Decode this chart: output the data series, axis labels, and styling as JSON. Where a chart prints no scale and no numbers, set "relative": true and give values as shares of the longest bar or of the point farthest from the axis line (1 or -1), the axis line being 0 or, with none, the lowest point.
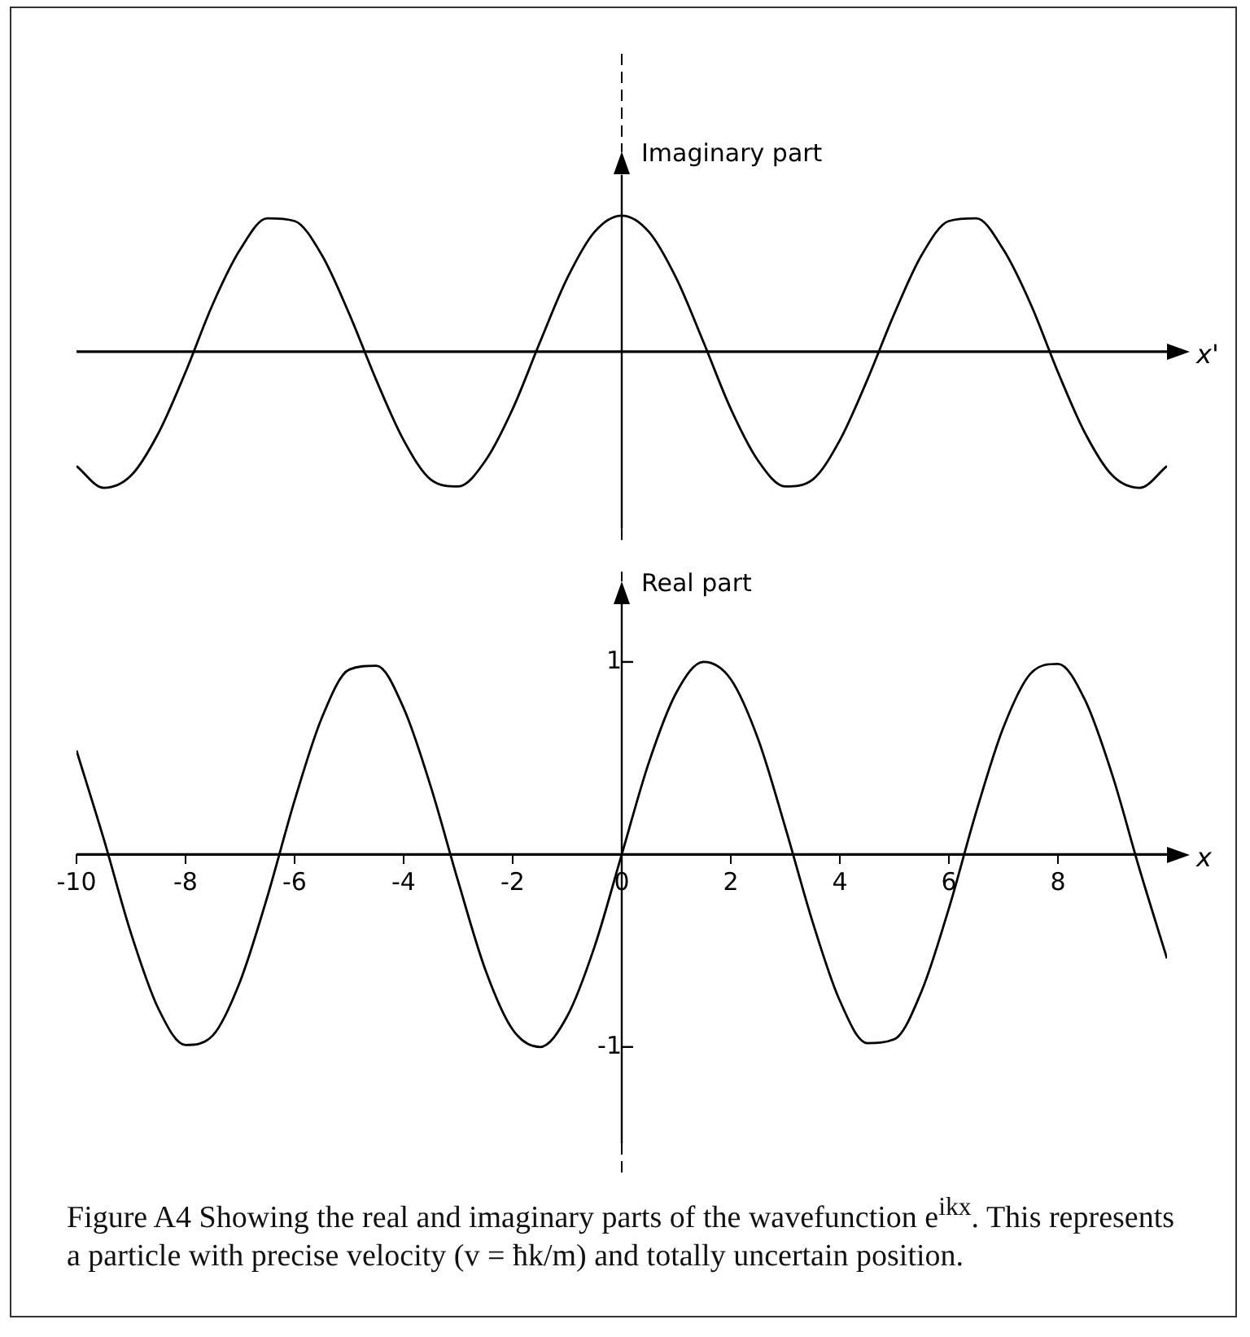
{
  "chart_data": [
    {
      "type": "line",
      "relative": true,
      "ylabel": "Imaginary part",
      "xlabel": "x'",
      "tick_labels": false,
      "marker": "none",
      "color": "#000000",
      "xlim": [
        -10,
        10
      ],
      "xticks": [
        -10,
        -8,
        -6,
        -4,
        -2,
        0,
        2,
        4,
        6,
        8
      ],
      "x": [
        -10,
        -9.5,
        -9,
        -8.5,
        -8,
        -7.5,
        -7,
        -6.5,
        -6,
        -5.5,
        -5,
        -4.5,
        -4,
        -3.5,
        -3,
        -2.5,
        -2,
        -1.5,
        -1,
        -0.5,
        0,
        0.5,
        1,
        1.5,
        2,
        2.5,
        3,
        3.5,
        4,
        4.5,
        5,
        5.5,
        6,
        6.5,
        7,
        7.5,
        8,
        8.5,
        9,
        9.5,
        10
      ],
      "values": [
        -0.84,
        -1.0,
        -0.91,
        -0.6,
        -0.15,
        0.35,
        0.75,
        0.98,
        0.96,
        0.71,
        0.28,
        -0.21,
        -0.65,
        -0.94,
        -0.99,
        -0.8,
        -0.42,
        0.07,
        0.54,
        0.88,
        1.0,
        0.88,
        0.54,
        0.07,
        -0.42,
        -0.8,
        -0.99,
        -0.94,
        -0.65,
        -0.21,
        0.28,
        0.71,
        0.96,
        0.98,
        0.75,
        0.35,
        -0.15,
        -0.6,
        -0.91,
        -1.0,
        -0.84
      ]
    },
    {
      "type": "line",
      "ylabel": "Real part",
      "xlabel": "x",
      "marker": "none",
      "color": "#000000",
      "xlim": [
        -10,
        10
      ],
      "xticks": [
        -10,
        -8,
        -6,
        -4,
        -2,
        0,
        2,
        4,
        6,
        8
      ],
      "ylim": [
        -1.5,
        1.3
      ],
      "yticks": [
        -1,
        1
      ],
      "x": [
        -10,
        -9.5,
        -9,
        -8.5,
        -8,
        -7.5,
        -7,
        -6.5,
        -6,
        -5.5,
        -5,
        -4.5,
        -4,
        -3.5,
        -3,
        -2.5,
        -2,
        -1.5,
        -1,
        -0.5,
        0,
        0.5,
        1,
        1.5,
        2,
        2.5,
        3,
        3.5,
        4,
        4.5,
        5,
        5.5,
        6,
        6.5,
        7,
        7.5,
        8,
        8.5,
        9,
        9.5,
        10
      ],
      "values": [
        0.54,
        0.08,
        -0.41,
        -0.8,
        -0.99,
        -0.94,
        -0.66,
        -0.22,
        0.28,
        0.71,
        0.96,
        0.98,
        0.76,
        0.35,
        -0.14,
        -0.6,
        -0.91,
        -1.0,
        -0.84,
        -0.48,
        0,
        0.48,
        0.84,
        1.0,
        0.91,
        0.6,
        0.14,
        -0.35,
        -0.76,
        -0.98,
        -0.96,
        -0.71,
        -0.28,
        0.22,
        0.66,
        0.94,
        0.99,
        0.8,
        0.41,
        -0.08,
        -0.54
      ],
      "annotations": [
        "Figure A4  Showing the real and imaginary parts of the wavefunction e$^{ikx}$. This represents a particle with precise velocity (v = ħk/m) and totally uncertain position."
      ]
    }
  ]
}
